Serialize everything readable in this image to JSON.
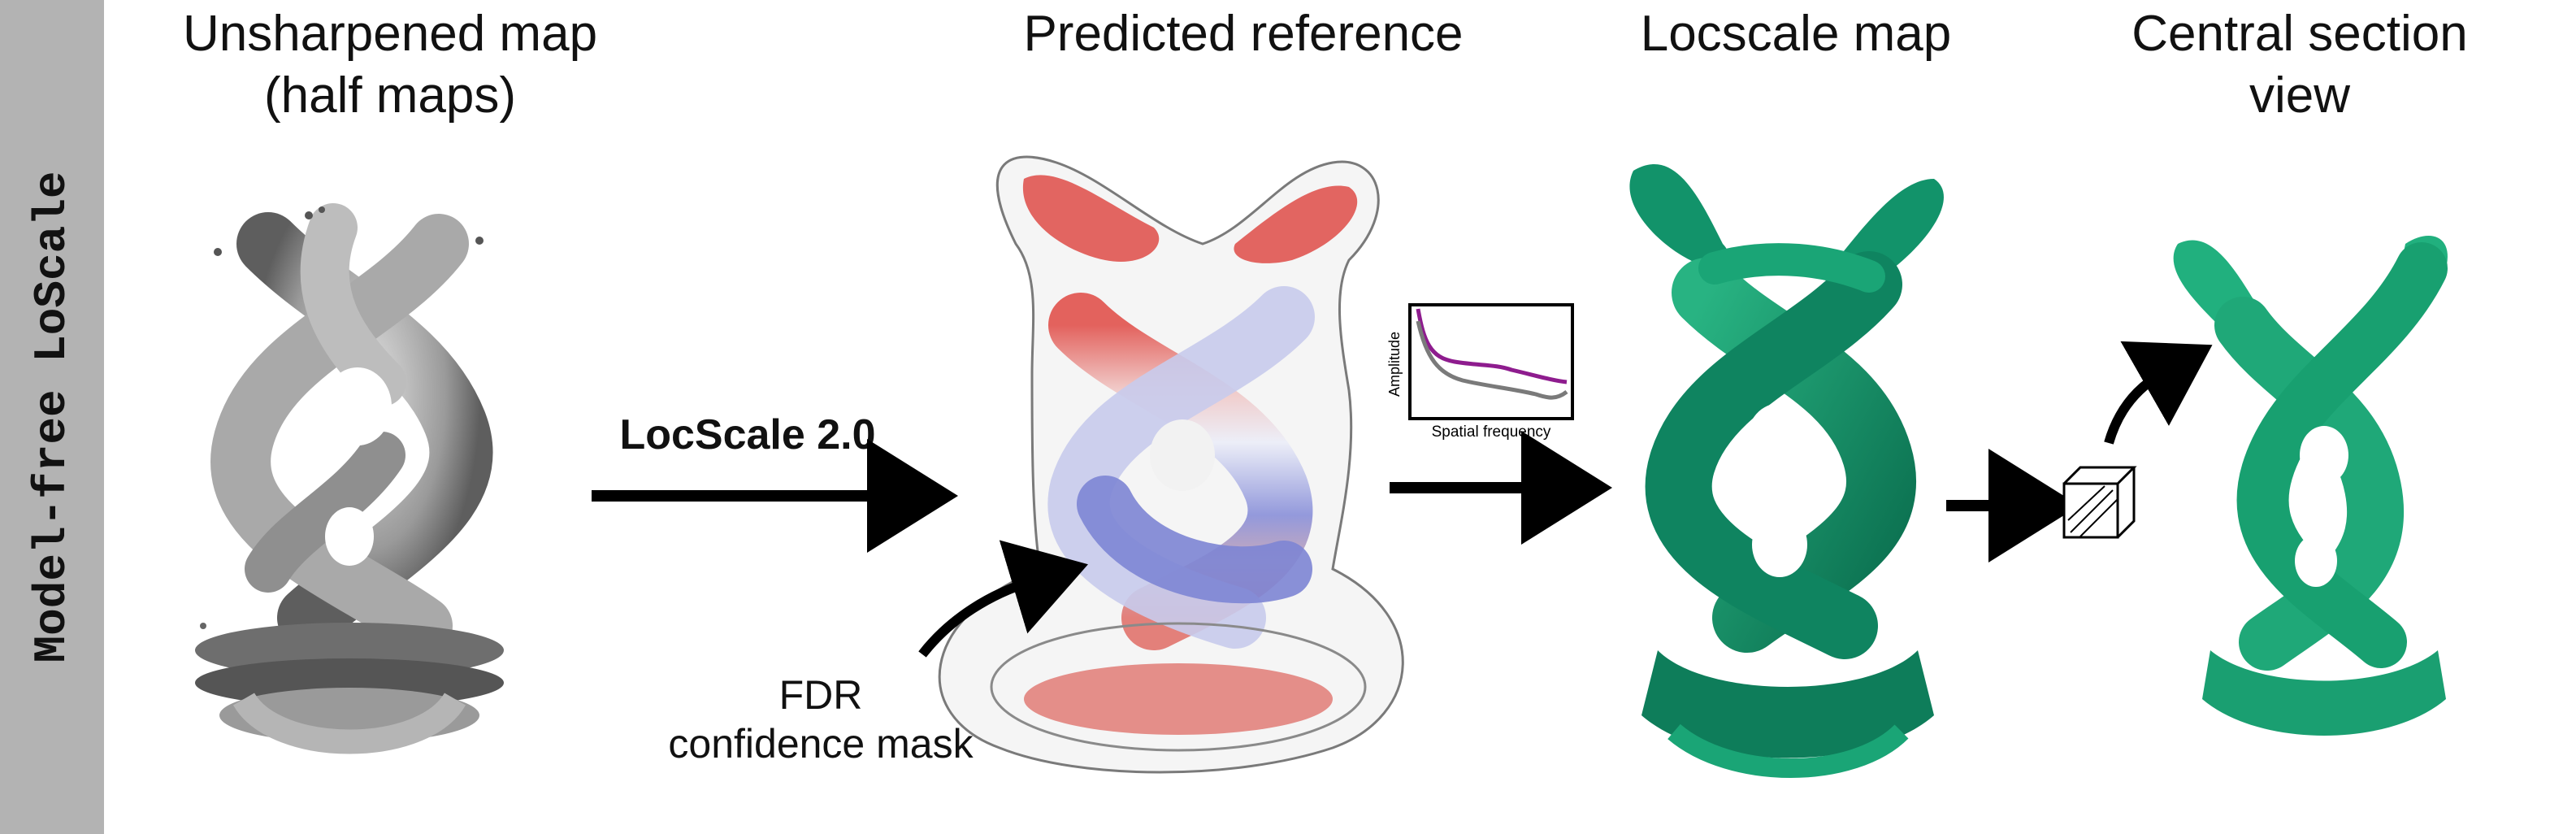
{
  "sidebar": {
    "label": "Model-free LoScale"
  },
  "panels": {
    "unsharpened": {
      "title_line1": "Unsharpened map",
      "title_line2": "(half maps)"
    },
    "predicted": {
      "title": "Predicted reference"
    },
    "locscale": {
      "title": "Locscale map"
    },
    "central": {
      "title_line1": "Central section",
      "title_line2": "view"
    }
  },
  "arrow_main": {
    "label": "LocScale 2.0"
  },
  "fdr": {
    "line1": "FDR",
    "line2": "confidence mask"
  },
  "inset": {
    "ylabel": "Amplitude",
    "xlabel": "Spatial frequency"
  },
  "colors": {
    "sidebar": "#b3b3b3",
    "map_gray": "#8c8c8c",
    "green": "#12936a",
    "red": "#d9534f",
    "blue": "#7f86d6",
    "curve_purple": "#8e1c8e",
    "curve_gray": "#7a7a7a"
  },
  "icons": [
    "arrow-right-icon",
    "curved-arrow-icon",
    "cube-icon"
  ]
}
